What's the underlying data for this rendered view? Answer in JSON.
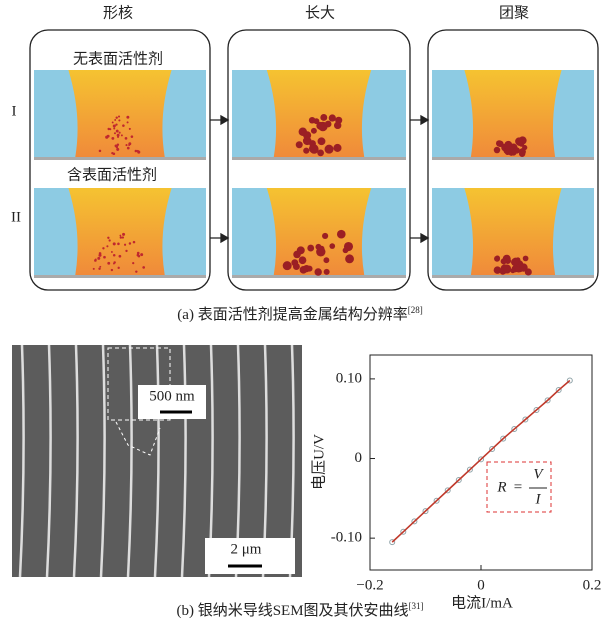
{
  "panel_a": {
    "columns": [
      "形核",
      "长大",
      "团聚"
    ],
    "rows": [
      "I",
      "II"
    ],
    "row_notes": [
      "无表面活性剂",
      "含表面活性剂"
    ],
    "caption": "(a) 表面活性剂提高金属结构分辨率",
    "caption_ref": "[28]"
  },
  "panel_b": {
    "sem_scales": [
      "500 nm",
      "2 μm"
    ],
    "caption": "(b) 银纳米导线SEM图及其伏安曲线",
    "caption_ref": "[31]",
    "formula": {
      "lhs": "R",
      "eq": "=",
      "numerator": "V",
      "denominator": "I"
    },
    "chart_data": {
      "type": "scatter",
      "x_label": "电流I/mA",
      "y_label": "电压U/V",
      "x": [
        -0.16,
        -0.14,
        -0.12,
        -0.1,
        -0.08,
        -0.06,
        -0.04,
        -0.02,
        0,
        0.02,
        0.04,
        0.06,
        0.08,
        0.1,
        0.12,
        0.14,
        0.16
      ],
      "values": [
        -0.105,
        -0.092,
        -0.079,
        -0.066,
        -0.053,
        -0.04,
        -0.027,
        -0.014,
        -0.001,
        0.012,
        0.025,
        0.037,
        0.049,
        0.061,
        0.073,
        0.086,
        0.098
      ],
      "marker_color": "#8fa3a8",
      "fit_color": "#c0392b",
      "xlim": [
        -0.2,
        0.2
      ],
      "ylim": [
        -0.14,
        0.13
      ],
      "xticks": [
        {
          "value": -0.2,
          "label": "−0.2"
        },
        0,
        0.2
      ],
      "yticks": [
        {
          "value": -0.1,
          "label": "-0.10"
        },
        0,
        {
          "value": 0.1,
          "label": "0.10"
        }
      ]
    }
  }
}
